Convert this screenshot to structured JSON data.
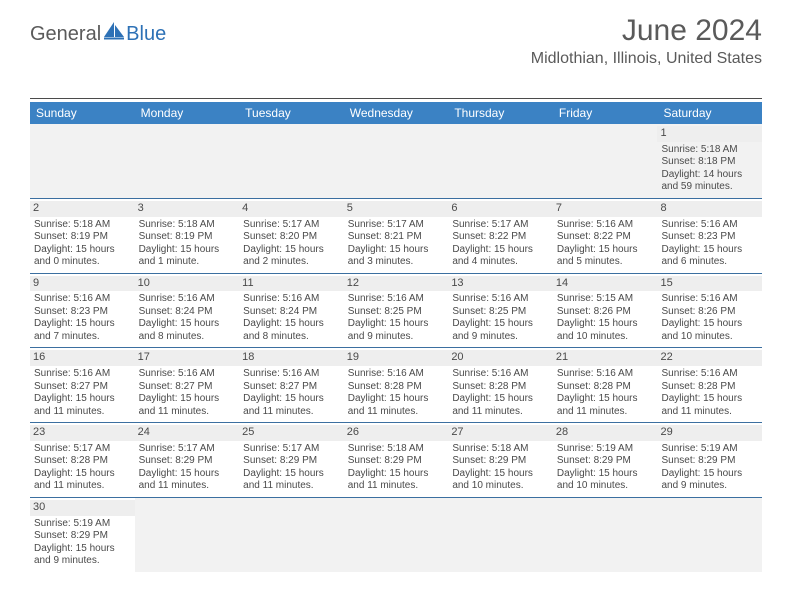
{
  "brand": {
    "text1": "General",
    "text2": "Blue",
    "sail_color": "#2d71b6"
  },
  "title": "June 2024",
  "location": "Midlothian, Illinois, United States",
  "colors": {
    "header_bg": "#3b82c4",
    "header_text": "#ffffff",
    "row_divider": "#3b6fa0",
    "blank_bg": "#f2f2f2",
    "daynum_bg": "#eeeeee",
    "text": "#4a4a4a"
  },
  "day_headers": [
    "Sunday",
    "Monday",
    "Tuesday",
    "Wednesday",
    "Thursday",
    "Friday",
    "Saturday"
  ],
  "weeks": [
    [
      {
        "blank": true
      },
      {
        "blank": true
      },
      {
        "blank": true
      },
      {
        "blank": true
      },
      {
        "blank": true
      },
      {
        "blank": true
      },
      {
        "day": "1",
        "sunrise": "Sunrise: 5:18 AM",
        "sunset": "Sunset: 8:18 PM",
        "daylight": "Daylight: 14 hours and 59 minutes."
      }
    ],
    [
      {
        "day": "2",
        "sunrise": "Sunrise: 5:18 AM",
        "sunset": "Sunset: 8:19 PM",
        "daylight": "Daylight: 15 hours and 0 minutes."
      },
      {
        "day": "3",
        "sunrise": "Sunrise: 5:18 AM",
        "sunset": "Sunset: 8:19 PM",
        "daylight": "Daylight: 15 hours and 1 minute."
      },
      {
        "day": "4",
        "sunrise": "Sunrise: 5:17 AM",
        "sunset": "Sunset: 8:20 PM",
        "daylight": "Daylight: 15 hours and 2 minutes."
      },
      {
        "day": "5",
        "sunrise": "Sunrise: 5:17 AM",
        "sunset": "Sunset: 8:21 PM",
        "daylight": "Daylight: 15 hours and 3 minutes."
      },
      {
        "day": "6",
        "sunrise": "Sunrise: 5:17 AM",
        "sunset": "Sunset: 8:22 PM",
        "daylight": "Daylight: 15 hours and 4 minutes."
      },
      {
        "day": "7",
        "sunrise": "Sunrise: 5:16 AM",
        "sunset": "Sunset: 8:22 PM",
        "daylight": "Daylight: 15 hours and 5 minutes."
      },
      {
        "day": "8",
        "sunrise": "Sunrise: 5:16 AM",
        "sunset": "Sunset: 8:23 PM",
        "daylight": "Daylight: 15 hours and 6 minutes."
      }
    ],
    [
      {
        "day": "9",
        "sunrise": "Sunrise: 5:16 AM",
        "sunset": "Sunset: 8:23 PM",
        "daylight": "Daylight: 15 hours and 7 minutes."
      },
      {
        "day": "10",
        "sunrise": "Sunrise: 5:16 AM",
        "sunset": "Sunset: 8:24 PM",
        "daylight": "Daylight: 15 hours and 8 minutes."
      },
      {
        "day": "11",
        "sunrise": "Sunrise: 5:16 AM",
        "sunset": "Sunset: 8:24 PM",
        "daylight": "Daylight: 15 hours and 8 minutes."
      },
      {
        "day": "12",
        "sunrise": "Sunrise: 5:16 AM",
        "sunset": "Sunset: 8:25 PM",
        "daylight": "Daylight: 15 hours and 9 minutes."
      },
      {
        "day": "13",
        "sunrise": "Sunrise: 5:16 AM",
        "sunset": "Sunset: 8:25 PM",
        "daylight": "Daylight: 15 hours and 9 minutes."
      },
      {
        "day": "14",
        "sunrise": "Sunrise: 5:15 AM",
        "sunset": "Sunset: 8:26 PM",
        "daylight": "Daylight: 15 hours and 10 minutes."
      },
      {
        "day": "15",
        "sunrise": "Sunrise: 5:16 AM",
        "sunset": "Sunset: 8:26 PM",
        "daylight": "Daylight: 15 hours and 10 minutes."
      }
    ],
    [
      {
        "day": "16",
        "sunrise": "Sunrise: 5:16 AM",
        "sunset": "Sunset: 8:27 PM",
        "daylight": "Daylight: 15 hours and 11 minutes."
      },
      {
        "day": "17",
        "sunrise": "Sunrise: 5:16 AM",
        "sunset": "Sunset: 8:27 PM",
        "daylight": "Daylight: 15 hours and 11 minutes."
      },
      {
        "day": "18",
        "sunrise": "Sunrise: 5:16 AM",
        "sunset": "Sunset: 8:27 PM",
        "daylight": "Daylight: 15 hours and 11 minutes."
      },
      {
        "day": "19",
        "sunrise": "Sunrise: 5:16 AM",
        "sunset": "Sunset: 8:28 PM",
        "daylight": "Daylight: 15 hours and 11 minutes."
      },
      {
        "day": "20",
        "sunrise": "Sunrise: 5:16 AM",
        "sunset": "Sunset: 8:28 PM",
        "daylight": "Daylight: 15 hours and 11 minutes."
      },
      {
        "day": "21",
        "sunrise": "Sunrise: 5:16 AM",
        "sunset": "Sunset: 8:28 PM",
        "daylight": "Daylight: 15 hours and 11 minutes."
      },
      {
        "day": "22",
        "sunrise": "Sunrise: 5:16 AM",
        "sunset": "Sunset: 8:28 PM",
        "daylight": "Daylight: 15 hours and 11 minutes."
      }
    ],
    [
      {
        "day": "23",
        "sunrise": "Sunrise: 5:17 AM",
        "sunset": "Sunset: 8:28 PM",
        "daylight": "Daylight: 15 hours and 11 minutes."
      },
      {
        "day": "24",
        "sunrise": "Sunrise: 5:17 AM",
        "sunset": "Sunset: 8:29 PM",
        "daylight": "Daylight: 15 hours and 11 minutes."
      },
      {
        "day": "25",
        "sunrise": "Sunrise: 5:17 AM",
        "sunset": "Sunset: 8:29 PM",
        "daylight": "Daylight: 15 hours and 11 minutes."
      },
      {
        "day": "26",
        "sunrise": "Sunrise: 5:18 AM",
        "sunset": "Sunset: 8:29 PM",
        "daylight": "Daylight: 15 hours and 11 minutes."
      },
      {
        "day": "27",
        "sunrise": "Sunrise: 5:18 AM",
        "sunset": "Sunset: 8:29 PM",
        "daylight": "Daylight: 15 hours and 10 minutes."
      },
      {
        "day": "28",
        "sunrise": "Sunrise: 5:19 AM",
        "sunset": "Sunset: 8:29 PM",
        "daylight": "Daylight: 15 hours and 10 minutes."
      },
      {
        "day": "29",
        "sunrise": "Sunrise: 5:19 AM",
        "sunset": "Sunset: 8:29 PM",
        "daylight": "Daylight: 15 hours and 9 minutes."
      }
    ],
    [
      {
        "day": "30",
        "sunrise": "Sunrise: 5:19 AM",
        "sunset": "Sunset: 8:29 PM",
        "daylight": "Daylight: 15 hours and 9 minutes."
      },
      {
        "blank": true
      },
      {
        "blank": true
      },
      {
        "blank": true
      },
      {
        "blank": true
      },
      {
        "blank": true
      },
      {
        "blank": true
      }
    ]
  ]
}
